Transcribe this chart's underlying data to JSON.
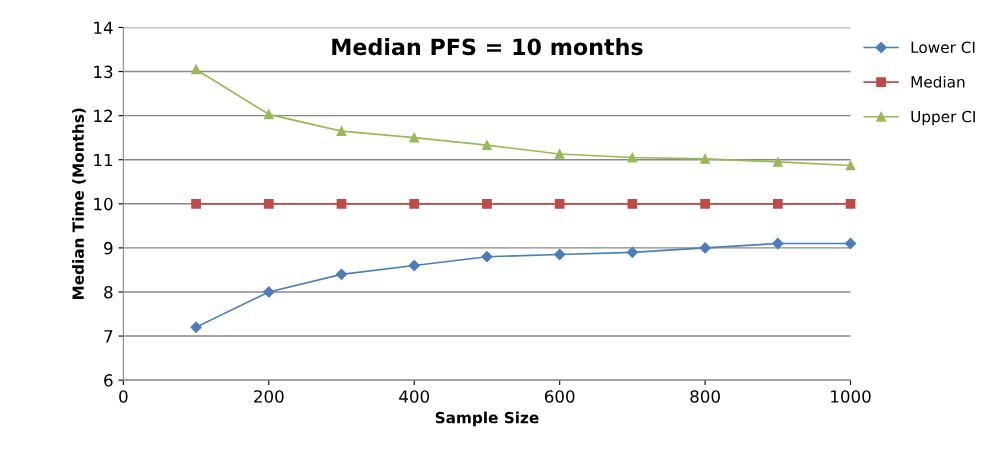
{
  "chart_data": {
    "type": "line",
    "title": "Median PFS = 10 months",
    "xlabel": "Sample Size",
    "ylabel": "Median Time (Months)",
    "x": [
      100,
      200,
      300,
      400,
      500,
      600,
      700,
      800,
      900,
      1000
    ],
    "series": [
      {
        "name": "Lower CI",
        "color": "#4a7ebb",
        "marker": "diamond",
        "values": [
          7.2,
          8.0,
          8.4,
          8.6,
          8.8,
          8.85,
          8.9,
          9.0,
          9.1,
          9.1
        ]
      },
      {
        "name": "Median",
        "color": "#be4b48",
        "marker": "square",
        "values": [
          10,
          10,
          10,
          10,
          10,
          10,
          10,
          10,
          10,
          10
        ]
      },
      {
        "name": "Upper CI",
        "color": "#98b954",
        "marker": "triangle",
        "values": [
          13.05,
          12.03,
          11.65,
          11.5,
          11.33,
          11.13,
          11.05,
          11.02,
          10.95,
          10.87
        ]
      }
    ],
    "xlim": [
      0,
      1000
    ],
    "xticks": [
      0,
      200,
      400,
      600,
      800,
      1000
    ],
    "ylim": [
      6,
      14
    ],
    "yticks": [
      6,
      7,
      8,
      9,
      10,
      11,
      12,
      13,
      14
    ],
    "grid": "y",
    "legend": "right",
    "line_style": "solid"
  }
}
